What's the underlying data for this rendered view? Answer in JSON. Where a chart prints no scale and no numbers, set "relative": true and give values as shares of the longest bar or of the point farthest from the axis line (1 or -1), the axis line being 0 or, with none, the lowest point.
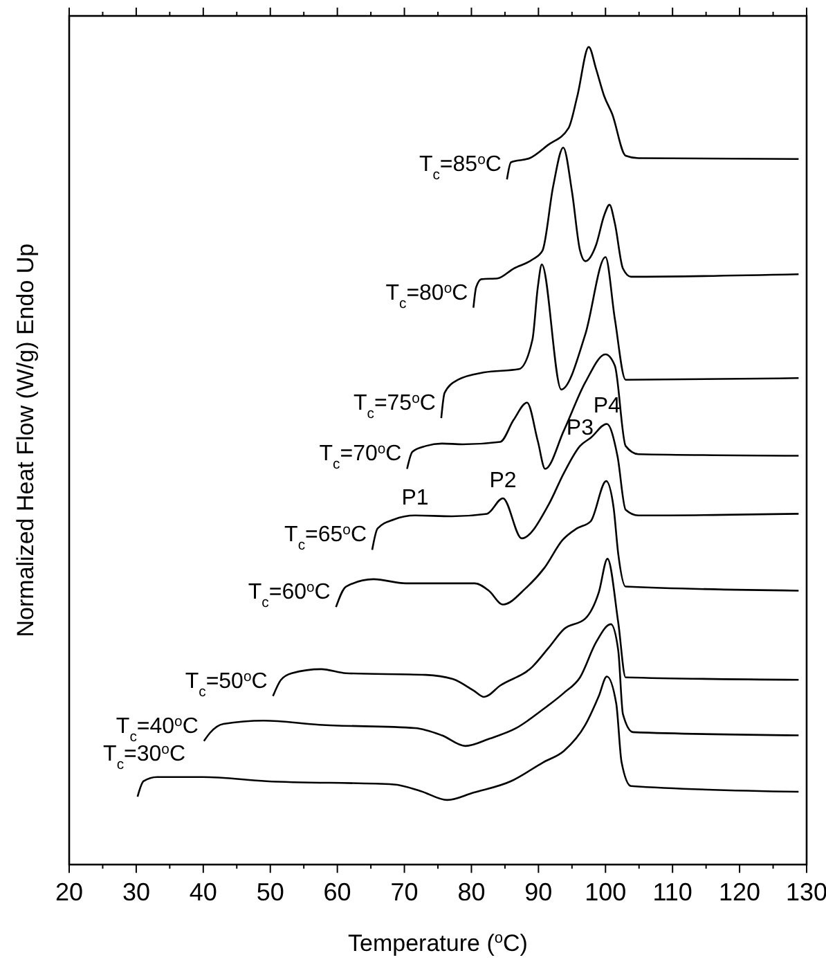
{
  "chart_data": {
    "type": "line",
    "relative": true,
    "xlabel": "Temperature ($^{o}$C)",
    "ylabel": "Normalized Heat Flow (W/g) Endo Up",
    "xlim": [
      20,
      130
    ],
    "xticks": [
      20,
      {
        "value": 25,
        "label": null
      },
      30,
      {
        "value": 35,
        "label": null
      },
      40,
      {
        "value": 45,
        "label": null
      },
      50,
      {
        "value": 55,
        "label": null
      },
      60,
      {
        "value": 65,
        "label": null
      },
      70,
      {
        "value": 75,
        "label": null
      },
      80,
      {
        "value": 85,
        "label": null
      },
      90,
      {
        "value": 95,
        "label": null
      },
      100,
      {
        "value": 105,
        "label": null
      },
      110,
      {
        "value": 115,
        "label": null
      },
      120,
      {
        "value": 125,
        "label": null
      },
      130
    ],
    "grid": false,
    "marker": "none",
    "line_style": "solid",
    "series": [
      {
        "name": "T$_{c}$=85$^{o}$C",
        "color": "#000000",
        "x": [
          85.3,
          85.9,
          88.7,
          91.4,
          94.5,
          95.8,
          97.5,
          98.6,
          99.8,
          101.0,
          103.0,
          104.9,
          128.8
        ],
        "values": [
          0.838,
          0.859,
          0.864,
          0.88,
          0.901,
          0.94,
          1.0,
          0.973,
          0.94,
          0.918,
          0.867,
          0.864,
          0.863
        ]
      },
      {
        "name": "T$_{c}$=80$^{o}$C",
        "color": "#000000",
        "x": [
          80.3,
          80.7,
          81.5,
          83.9,
          86.3,
          89.1,
          90.6,
          92.2,
          93.7,
          95.0,
          96.2,
          97.0,
          98.6,
          99.8,
          100.6,
          101.4,
          102.6,
          103.8,
          128.8
        ],
        "values": [
          0.681,
          0.706,
          0.716,
          0.717,
          0.729,
          0.74,
          0.751,
          0.83,
          0.877,
          0.823,
          0.751,
          0.738,
          0.758,
          0.794,
          0.807,
          0.784,
          0.729,
          0.719,
          0.722
        ]
      },
      {
        "name": "T$_{c}$=75$^{o}$C",
        "color": "#000000",
        "x": [
          75.5,
          76.0,
          78.0,
          81.9,
          87.1,
          89.1,
          89.9,
          90.5,
          93.4,
          97.0,
          100.0,
          101.4,
          103.0,
          128.8
        ],
        "values": [
          0.546,
          0.577,
          0.593,
          0.602,
          0.606,
          0.642,
          0.706,
          0.734,
          0.581,
          0.649,
          0.743,
          0.667,
          0.593,
          0.595
        ]
      },
      {
        "name": "T$_{c}$=70$^{o}$C",
        "color": "#000000",
        "x": [
          70.4,
          71.2,
          73.2,
          75.6,
          78.7,
          84.3,
          86.3,
          88.3,
          89.9,
          91.0,
          93.8,
          97.0,
          100.0,
          101.4,
          103.0,
          104.9,
          128.8
        ],
        "values": [
          0.484,
          0.505,
          0.512,
          0.515,
          0.514,
          0.517,
          0.544,
          0.565,
          0.518,
          0.484,
          0.531,
          0.59,
          0.624,
          0.61,
          0.512,
          0.502,
          0.5
        ]
      },
      {
        "name": "T$_{c}$=65$^{o}$C",
        "color": "#000000",
        "x": [
          65.2,
          66.0,
          68.4,
          71.6,
          77.1,
          82.3,
          84.7,
          87.5,
          91.5,
          93.8,
          96.2,
          97.8,
          100.2,
          101.8,
          103.0,
          104.9,
          128.8
        ],
        "values": [
          0.385,
          0.411,
          0.422,
          0.427,
          0.426,
          0.429,
          0.448,
          0.399,
          0.44,
          0.479,
          0.512,
          0.522,
          0.539,
          0.499,
          0.434,
          0.427,
          0.429
        ]
      },
      {
        "name": "T$_{c}$=60$^{o}$C",
        "color": "#000000",
        "x": [
          59.8,
          61.3,
          65.4,
          70.2,
          80.5,
          82.6,
          84.7,
          88.1,
          90.9,
          93.6,
          95.7,
          97.8,
          100.1,
          101.2,
          101.9,
          103.0,
          128.8
        ],
        "values": [
          0.315,
          0.34,
          0.349,
          0.344,
          0.344,
          0.335,
          0.318,
          0.338,
          0.363,
          0.397,
          0.411,
          0.42,
          0.469,
          0.437,
          0.38,
          0.34,
          0.335
        ]
      },
      {
        "name": "T$_{c}$=50$^{o}$C",
        "color": "#000000",
        "x": [
          50.4,
          51.6,
          53.2,
          57.6,
          61.3,
          73.2,
          77.2,
          80.3,
          81.9,
          84.3,
          89.1,
          91.5,
          93.8,
          97.0,
          99.0,
          100.3,
          101.9,
          103.0,
          128.8
        ],
        "values": [
          0.206,
          0.226,
          0.234,
          0.239,
          0.234,
          0.232,
          0.227,
          0.213,
          0.205,
          0.219,
          0.242,
          0.265,
          0.288,
          0.301,
          0.333,
          0.374,
          0.296,
          0.229,
          0.226
        ]
      },
      {
        "name": "T$_{c}$=40$^{o}$C",
        "color": "#000000",
        "x": [
          40.1,
          41.0,
          43.0,
          49.0,
          57.3,
          71.6,
          75.6,
          79.1,
          82.7,
          86.7,
          90.7,
          93.8,
          96.2,
          98.6,
          100.8,
          101.9,
          102.6,
          104.1,
          128.8
        ],
        "values": [
          0.151,
          0.161,
          0.172,
          0.176,
          0.171,
          0.167,
          0.158,
          0.145,
          0.154,
          0.167,
          0.19,
          0.21,
          0.229,
          0.272,
          0.294,
          0.262,
          0.184,
          0.162,
          0.158
        ]
      },
      {
        "name": "T$_{c}$=30$^{o}$C",
        "color": "#000000",
        "x": [
          30.2,
          31.1,
          33.1,
          39.9,
          49.4,
          68.4,
          72.4,
          76.4,
          80.3,
          85.9,
          90.7,
          93.8,
          97.0,
          99.0,
          100.2,
          101.6,
          102.4,
          103.8,
          128.8
        ],
        "values": [
          0.083,
          0.102,
          0.107,
          0.107,
          0.102,
          0.098,
          0.09,
          0.079,
          0.088,
          0.102,
          0.125,
          0.139,
          0.171,
          0.206,
          0.23,
          0.197,
          0.125,
          0.096,
          0.089
        ]
      }
    ],
    "annotations": [
      {
        "text": "P1",
        "x": 71.6,
        "y": 0.427
      },
      {
        "text": "P2",
        "x": 84.7,
        "y": 0.448
      },
      {
        "text": "P3",
        "x": 96.2,
        "y": 0.512
      },
      {
        "text": "P4",
        "x": 100.2,
        "y": 0.539
      }
    ]
  }
}
